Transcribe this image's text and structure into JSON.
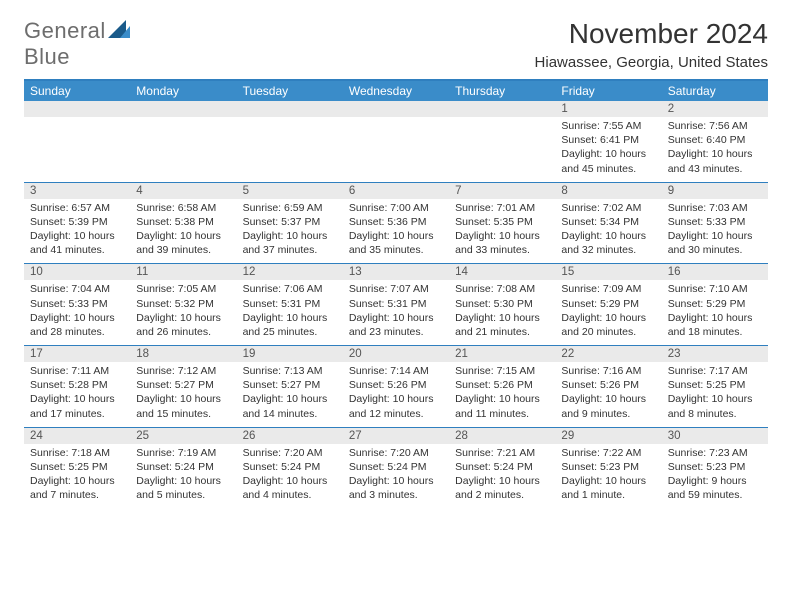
{
  "brand": {
    "part1": "General",
    "part2": "Blue"
  },
  "title": "November 2024",
  "location": "Hiawassee, Georgia, United States",
  "colors": {
    "header_bg": "#3a8cc9",
    "header_text": "#ffffff",
    "accent_line": "#2f7fbf",
    "date_bg": "#eaeaea",
    "body_text": "#333333",
    "logo_gray": "#6d6d6d",
    "logo_blue": "#2f7fbf",
    "page_bg": "#ffffff"
  },
  "fonts": {
    "title_pt": 28,
    "location_pt": 15,
    "dayheader_pt": 12,
    "date_pt": 11.5,
    "body_pt": 10.5
  },
  "day_names": [
    "Sunday",
    "Monday",
    "Tuesday",
    "Wednesday",
    "Thursday",
    "Friday",
    "Saturday"
  ],
  "weeks": [
    {
      "dates": [
        "",
        "",
        "",
        "",
        "",
        "1",
        "2"
      ],
      "cells": [
        null,
        null,
        null,
        null,
        null,
        {
          "sunrise": "Sunrise: 7:55 AM",
          "sunset": "Sunset: 6:41 PM",
          "daylight": "Daylight: 10 hours and 45 minutes."
        },
        {
          "sunrise": "Sunrise: 7:56 AM",
          "sunset": "Sunset: 6:40 PM",
          "daylight": "Daylight: 10 hours and 43 minutes."
        }
      ]
    },
    {
      "dates": [
        "3",
        "4",
        "5",
        "6",
        "7",
        "8",
        "9"
      ],
      "cells": [
        {
          "sunrise": "Sunrise: 6:57 AM",
          "sunset": "Sunset: 5:39 PM",
          "daylight": "Daylight: 10 hours and 41 minutes."
        },
        {
          "sunrise": "Sunrise: 6:58 AM",
          "sunset": "Sunset: 5:38 PM",
          "daylight": "Daylight: 10 hours and 39 minutes."
        },
        {
          "sunrise": "Sunrise: 6:59 AM",
          "sunset": "Sunset: 5:37 PM",
          "daylight": "Daylight: 10 hours and 37 minutes."
        },
        {
          "sunrise": "Sunrise: 7:00 AM",
          "sunset": "Sunset: 5:36 PM",
          "daylight": "Daylight: 10 hours and 35 minutes."
        },
        {
          "sunrise": "Sunrise: 7:01 AM",
          "sunset": "Sunset: 5:35 PM",
          "daylight": "Daylight: 10 hours and 33 minutes."
        },
        {
          "sunrise": "Sunrise: 7:02 AM",
          "sunset": "Sunset: 5:34 PM",
          "daylight": "Daylight: 10 hours and 32 minutes."
        },
        {
          "sunrise": "Sunrise: 7:03 AM",
          "sunset": "Sunset: 5:33 PM",
          "daylight": "Daylight: 10 hours and 30 minutes."
        }
      ]
    },
    {
      "dates": [
        "10",
        "11",
        "12",
        "13",
        "14",
        "15",
        "16"
      ],
      "cells": [
        {
          "sunrise": "Sunrise: 7:04 AM",
          "sunset": "Sunset: 5:33 PM",
          "daylight": "Daylight: 10 hours and 28 minutes."
        },
        {
          "sunrise": "Sunrise: 7:05 AM",
          "sunset": "Sunset: 5:32 PM",
          "daylight": "Daylight: 10 hours and 26 minutes."
        },
        {
          "sunrise": "Sunrise: 7:06 AM",
          "sunset": "Sunset: 5:31 PM",
          "daylight": "Daylight: 10 hours and 25 minutes."
        },
        {
          "sunrise": "Sunrise: 7:07 AM",
          "sunset": "Sunset: 5:31 PM",
          "daylight": "Daylight: 10 hours and 23 minutes."
        },
        {
          "sunrise": "Sunrise: 7:08 AM",
          "sunset": "Sunset: 5:30 PM",
          "daylight": "Daylight: 10 hours and 21 minutes."
        },
        {
          "sunrise": "Sunrise: 7:09 AM",
          "sunset": "Sunset: 5:29 PM",
          "daylight": "Daylight: 10 hours and 20 minutes."
        },
        {
          "sunrise": "Sunrise: 7:10 AM",
          "sunset": "Sunset: 5:29 PM",
          "daylight": "Daylight: 10 hours and 18 minutes."
        }
      ]
    },
    {
      "dates": [
        "17",
        "18",
        "19",
        "20",
        "21",
        "22",
        "23"
      ],
      "cells": [
        {
          "sunrise": "Sunrise: 7:11 AM",
          "sunset": "Sunset: 5:28 PM",
          "daylight": "Daylight: 10 hours and 17 minutes."
        },
        {
          "sunrise": "Sunrise: 7:12 AM",
          "sunset": "Sunset: 5:27 PM",
          "daylight": "Daylight: 10 hours and 15 minutes."
        },
        {
          "sunrise": "Sunrise: 7:13 AM",
          "sunset": "Sunset: 5:27 PM",
          "daylight": "Daylight: 10 hours and 14 minutes."
        },
        {
          "sunrise": "Sunrise: 7:14 AM",
          "sunset": "Sunset: 5:26 PM",
          "daylight": "Daylight: 10 hours and 12 minutes."
        },
        {
          "sunrise": "Sunrise: 7:15 AM",
          "sunset": "Sunset: 5:26 PM",
          "daylight": "Daylight: 10 hours and 11 minutes."
        },
        {
          "sunrise": "Sunrise: 7:16 AM",
          "sunset": "Sunset: 5:26 PM",
          "daylight": "Daylight: 10 hours and 9 minutes."
        },
        {
          "sunrise": "Sunrise: 7:17 AM",
          "sunset": "Sunset: 5:25 PM",
          "daylight": "Daylight: 10 hours and 8 minutes."
        }
      ]
    },
    {
      "dates": [
        "24",
        "25",
        "26",
        "27",
        "28",
        "29",
        "30"
      ],
      "cells": [
        {
          "sunrise": "Sunrise: 7:18 AM",
          "sunset": "Sunset: 5:25 PM",
          "daylight": "Daylight: 10 hours and 7 minutes."
        },
        {
          "sunrise": "Sunrise: 7:19 AM",
          "sunset": "Sunset: 5:24 PM",
          "daylight": "Daylight: 10 hours and 5 minutes."
        },
        {
          "sunrise": "Sunrise: 7:20 AM",
          "sunset": "Sunset: 5:24 PM",
          "daylight": "Daylight: 10 hours and 4 minutes."
        },
        {
          "sunrise": "Sunrise: 7:20 AM",
          "sunset": "Sunset: 5:24 PM",
          "daylight": "Daylight: 10 hours and 3 minutes."
        },
        {
          "sunrise": "Sunrise: 7:21 AM",
          "sunset": "Sunset: 5:24 PM",
          "daylight": "Daylight: 10 hours and 2 minutes."
        },
        {
          "sunrise": "Sunrise: 7:22 AM",
          "sunset": "Sunset: 5:23 PM",
          "daylight": "Daylight: 10 hours and 1 minute."
        },
        {
          "sunrise": "Sunrise: 7:23 AM",
          "sunset": "Sunset: 5:23 PM",
          "daylight": "Daylight: 9 hours and 59 minutes."
        }
      ]
    }
  ]
}
